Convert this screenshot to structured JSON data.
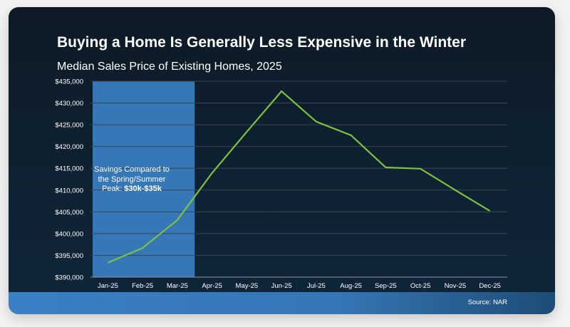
{
  "chart_data": {
    "type": "line",
    "title": "Buying a Home Is Generally Less Expensive in the Winter",
    "subtitle": "Median Sales Price of Existing Homes, 2025",
    "xlabel": "",
    "ylabel": "",
    "categories": [
      "Jan-25",
      "Feb-25",
      "Mar-25",
      "Apr-25",
      "May-25",
      "Jun-25",
      "Jul-25",
      "Aug-25",
      "Sep-25",
      "Oct-25",
      "Nov-25",
      "Dec-25"
    ],
    "series": [
      {
        "name": "Median Sales Price",
        "color": "#7dc242",
        "values": [
          393300,
          396700,
          403100,
          413900,
          423400,
          432700,
          425700,
          422600,
          415200,
          414900,
          410000,
          405200
        ]
      }
    ],
    "ylim": [
      390000,
      435000
    ],
    "yticks": [
      390000,
      395000,
      400000,
      405000,
      410000,
      415000,
      420000,
      425000,
      430000,
      435000
    ],
    "ytick_labels": [
      "$390,000",
      "$395,000",
      "$400,000",
      "$405,000",
      "$410,000",
      "$415,000",
      "$420,000",
      "$425,000",
      "$430,000",
      "$435,000"
    ],
    "grid": true,
    "highlight": {
      "from": "Jan-25",
      "to": "Mar-25",
      "color": "#3677b8"
    },
    "annotation": {
      "line1": "Savings Compared to",
      "line2": "the Spring/Summer",
      "line3_prefix": "Peak: ",
      "line3_bold": "$30k-$35k"
    },
    "source": "Source: NAR"
  },
  "colors": {
    "background": "#0f2233",
    "line": "#7dc242",
    "highlight": "#3677b8",
    "grid": "#3a4552"
  }
}
